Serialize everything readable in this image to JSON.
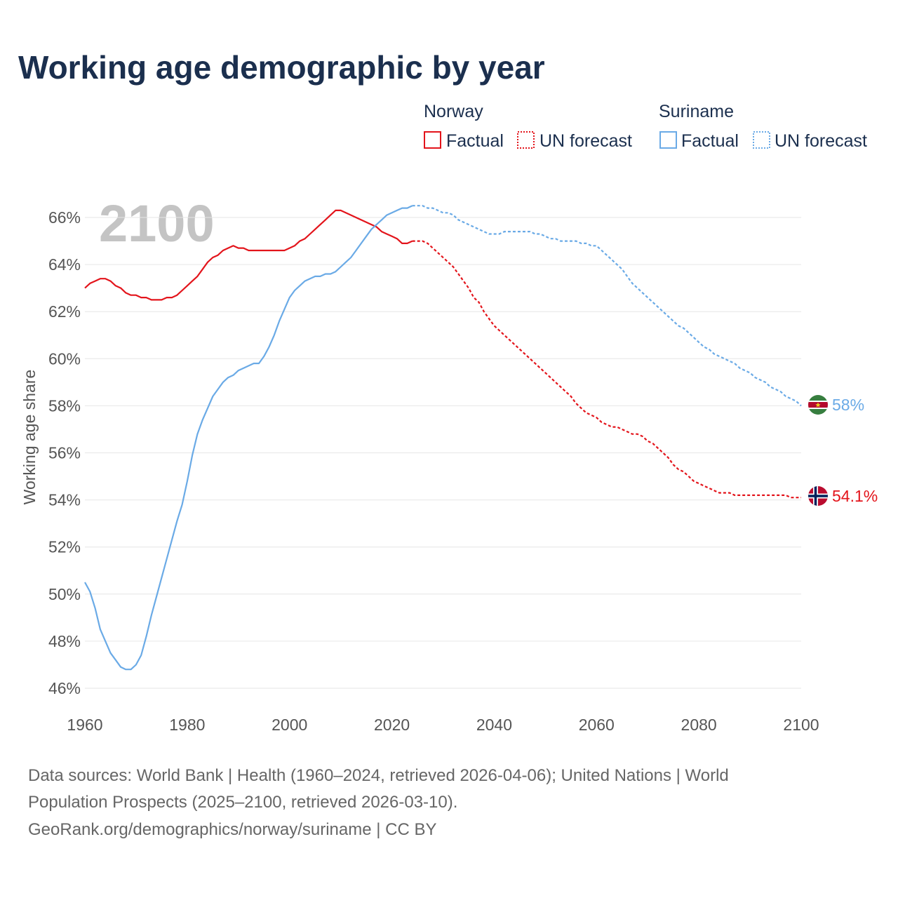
{
  "title": "Working age demographic by year",
  "legend": {
    "groups": [
      {
        "country": "Norway",
        "color": "#e3141b",
        "factual_label": "Factual",
        "forecast_label": "UN forecast"
      },
      {
        "country": "Suriname",
        "color": "#6aaae6",
        "factual_label": "Factual",
        "forecast_label": "UN forecast"
      }
    ]
  },
  "year_watermark": "2100",
  "icons": {
    "norway_flag": "norway-flag-icon",
    "suriname_flag": "suriname-flag-icon"
  },
  "chart_data": {
    "type": "line",
    "title": "Working age demographic by year",
    "xlabel": "",
    "ylabel": "Working age share",
    "xlim": [
      1960,
      2100
    ],
    "ylim": [
      45.2,
      67.2
    ],
    "x_ticks": [
      1960,
      1980,
      2000,
      2020,
      2040,
      2060,
      2080,
      2100
    ],
    "x_tick_labels": [
      "1960",
      "1980",
      "2000",
      "2020",
      "2040",
      "2060",
      "2080",
      "2100"
    ],
    "y_ticks": [
      46,
      48,
      50,
      52,
      54,
      56,
      58,
      60,
      62,
      64,
      66
    ],
    "y_tick_labels": [
      "46%",
      "48%",
      "50%",
      "52%",
      "54%",
      "56%",
      "58%",
      "60%",
      "62%",
      "64%",
      "66%"
    ],
    "grid": true,
    "series": [
      {
        "name": "Norway",
        "color": "#e3141b",
        "end_label": "54.1%",
        "factual": {
          "x": [
            1960,
            1961,
            1962,
            1963,
            1964,
            1965,
            1966,
            1967,
            1968,
            1969,
            1970,
            1971,
            1972,
            1973,
            1974,
            1975,
            1976,
            1977,
            1978,
            1979,
            1980,
            1981,
            1982,
            1983,
            1984,
            1985,
            1986,
            1987,
            1988,
            1989,
            1990,
            1991,
            1992,
            1993,
            1994,
            1995,
            1996,
            1997,
            1998,
            1999,
            2000,
            2001,
            2002,
            2003,
            2004,
            2005,
            2006,
            2007,
            2008,
            2009,
            2010,
            2011,
            2012,
            2013,
            2014,
            2015,
            2016,
            2017,
            2018,
            2019,
            2020,
            2021,
            2022,
            2023,
            2024
          ],
          "y": [
            63.0,
            63.2,
            63.3,
            63.4,
            63.4,
            63.3,
            63.1,
            63.0,
            62.8,
            62.7,
            62.7,
            62.6,
            62.6,
            62.5,
            62.5,
            62.5,
            62.6,
            62.6,
            62.7,
            62.9,
            63.1,
            63.3,
            63.5,
            63.8,
            64.1,
            64.3,
            64.4,
            64.6,
            64.7,
            64.8,
            64.7,
            64.7,
            64.6,
            64.6,
            64.6,
            64.6,
            64.6,
            64.6,
            64.6,
            64.6,
            64.7,
            64.8,
            65.0,
            65.1,
            65.3,
            65.5,
            65.7,
            65.9,
            66.1,
            66.3,
            66.3,
            66.2,
            66.1,
            66.0,
            65.9,
            65.8,
            65.7,
            65.6,
            65.4,
            65.3,
            65.2,
            65.1,
            64.9,
            64.9,
            65.0
          ]
        },
        "forecast": {
          "x": [
            2024,
            2025,
            2026,
            2027,
            2028,
            2029,
            2030,
            2031,
            2032,
            2033,
            2034,
            2035,
            2036,
            2037,
            2038,
            2039,
            2040,
            2041,
            2042,
            2043,
            2044,
            2045,
            2046,
            2047,
            2048,
            2049,
            2050,
            2051,
            2052,
            2053,
            2054,
            2055,
            2056,
            2057,
            2058,
            2059,
            2060,
            2061,
            2062,
            2063,
            2064,
            2065,
            2066,
            2067,
            2068,
            2069,
            2070,
            2071,
            2072,
            2073,
            2074,
            2075,
            2076,
            2077,
            2078,
            2079,
            2080,
            2081,
            2082,
            2083,
            2084,
            2085,
            2086,
            2087,
            2088,
            2089,
            2090,
            2091,
            2092,
            2093,
            2094,
            2095,
            2096,
            2097,
            2098,
            2099,
            2100
          ],
          "y": [
            65.0,
            65.0,
            65.0,
            64.9,
            64.7,
            64.5,
            64.3,
            64.1,
            63.9,
            63.6,
            63.3,
            63.0,
            62.6,
            62.4,
            62.0,
            61.7,
            61.4,
            61.2,
            61.0,
            60.8,
            60.6,
            60.4,
            60.2,
            60.0,
            59.8,
            59.6,
            59.4,
            59.2,
            59.0,
            58.8,
            58.6,
            58.4,
            58.1,
            57.9,
            57.7,
            57.6,
            57.5,
            57.3,
            57.2,
            57.1,
            57.1,
            57.0,
            56.9,
            56.8,
            56.8,
            56.7,
            56.5,
            56.4,
            56.2,
            56.0,
            55.8,
            55.5,
            55.3,
            55.2,
            55.0,
            54.8,
            54.7,
            54.6,
            54.5,
            54.4,
            54.3,
            54.3,
            54.3,
            54.2,
            54.2,
            54.2,
            54.2,
            54.2,
            54.2,
            54.2,
            54.2,
            54.2,
            54.2,
            54.2,
            54.1,
            54.1,
            54.1
          ]
        }
      },
      {
        "name": "Suriname",
        "color": "#6aaae6",
        "end_label": "58%",
        "factual": {
          "x": [
            1960,
            1961,
            1962,
            1963,
            1964,
            1965,
            1966,
            1967,
            1968,
            1969,
            1970,
            1971,
            1972,
            1973,
            1974,
            1975,
            1976,
            1977,
            1978,
            1979,
            1980,
            1981,
            1982,
            1983,
            1984,
            1985,
            1986,
            1987,
            1988,
            1989,
            1990,
            1991,
            1992,
            1993,
            1994,
            1995,
            1996,
            1997,
            1998,
            1999,
            2000,
            2001,
            2002,
            2003,
            2004,
            2005,
            2006,
            2007,
            2008,
            2009,
            2010,
            2011,
            2012,
            2013,
            2014,
            2015,
            2016,
            2017,
            2018,
            2019,
            2020,
            2021,
            2022,
            2023,
            2024
          ],
          "y": [
            50.5,
            50.1,
            49.4,
            48.5,
            48.0,
            47.5,
            47.2,
            46.9,
            46.8,
            46.8,
            47.0,
            47.4,
            48.2,
            49.1,
            49.9,
            50.7,
            51.5,
            52.3,
            53.1,
            53.8,
            54.8,
            55.9,
            56.8,
            57.4,
            57.9,
            58.4,
            58.7,
            59.0,
            59.2,
            59.3,
            59.5,
            59.6,
            59.7,
            59.8,
            59.8,
            60.1,
            60.5,
            61.0,
            61.6,
            62.1,
            62.6,
            62.9,
            63.1,
            63.3,
            63.4,
            63.5,
            63.5,
            63.6,
            63.6,
            63.7,
            63.9,
            64.1,
            64.3,
            64.6,
            64.9,
            65.2,
            65.5,
            65.7,
            65.9,
            66.1,
            66.2,
            66.3,
            66.4,
            66.4,
            66.5
          ]
        },
        "forecast": {
          "x": [
            2024,
            2025,
            2026,
            2027,
            2028,
            2029,
            2030,
            2031,
            2032,
            2033,
            2034,
            2035,
            2036,
            2037,
            2038,
            2039,
            2040,
            2041,
            2042,
            2043,
            2044,
            2045,
            2046,
            2047,
            2048,
            2049,
            2050,
            2051,
            2052,
            2053,
            2054,
            2055,
            2056,
            2057,
            2058,
            2059,
            2060,
            2061,
            2062,
            2063,
            2064,
            2065,
            2066,
            2067,
            2068,
            2069,
            2070,
            2071,
            2072,
            2073,
            2074,
            2075,
            2076,
            2077,
            2078,
            2079,
            2080,
            2081,
            2082,
            2083,
            2084,
            2085,
            2086,
            2087,
            2088,
            2089,
            2090,
            2091,
            2092,
            2093,
            2094,
            2095,
            2096,
            2097,
            2098,
            2099,
            2100
          ],
          "y": [
            66.5,
            66.5,
            66.5,
            66.4,
            66.4,
            66.3,
            66.2,
            66.2,
            66.1,
            65.9,
            65.8,
            65.7,
            65.6,
            65.5,
            65.4,
            65.3,
            65.3,
            65.3,
            65.4,
            65.4,
            65.4,
            65.4,
            65.4,
            65.4,
            65.3,
            65.3,
            65.2,
            65.1,
            65.1,
            65.0,
            65.0,
            65.0,
            65.0,
            64.9,
            64.9,
            64.8,
            64.8,
            64.6,
            64.4,
            64.2,
            64.0,
            63.8,
            63.5,
            63.2,
            63.0,
            62.8,
            62.6,
            62.4,
            62.2,
            62.0,
            61.8,
            61.6,
            61.4,
            61.3,
            61.1,
            60.9,
            60.7,
            60.5,
            60.4,
            60.2,
            60.1,
            60.0,
            59.9,
            59.8,
            59.6,
            59.5,
            59.4,
            59.2,
            59.1,
            59.0,
            58.8,
            58.7,
            58.6,
            58.4,
            58.3,
            58.2,
            58.0
          ]
        }
      }
    ]
  },
  "source": {
    "line1": "Data sources: World Bank | Health (1960–2024, retrieved 2026-04-06); United Nations | World",
    "line2": "Population Prospects (2025–2100, retrieved 2026-03-10).",
    "line3": "GeoRank.org/demographics/norway/suriname | CC BY"
  }
}
